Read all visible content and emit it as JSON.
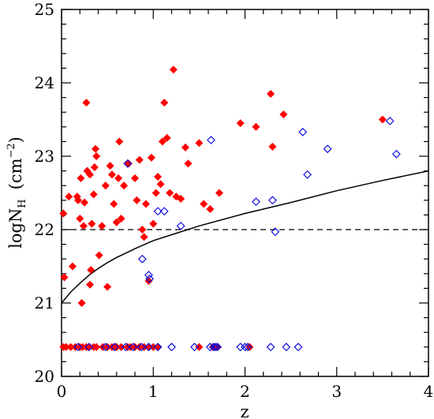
{
  "chart_data": {
    "type": "scatter",
    "title": "",
    "xlabel": "z",
    "ylabel": {
      "prefix": "logN",
      "subscript": "H",
      "unit_open": "(cm",
      "unit_exponent": "−2",
      "unit_close": ")"
    },
    "xlim": [
      0,
      4
    ],
    "ylim": [
      20,
      25
    ],
    "x_ticks": [
      "0",
      "1",
      "2",
      "3",
      "4"
    ],
    "y_ticks": [
      "20",
      "21",
      "22",
      "23",
      "24",
      "25"
    ],
    "grid": false,
    "legend": "none",
    "series": [
      {
        "marker": "filled-diamond",
        "color": "#ff0000",
        "points": [
          [
            0.02,
            22.22
          ],
          [
            0.03,
            21.35
          ],
          [
            0.08,
            22.45
          ],
          [
            0.12,
            21.5
          ],
          [
            0.17,
            22.45
          ],
          [
            0.18,
            22.4
          ],
          [
            0.2,
            22.15
          ],
          [
            0.21,
            22.7
          ],
          [
            0.22,
            21.0
          ],
          [
            0.24,
            22.05
          ],
          [
            0.25,
            22.37
          ],
          [
            0.27,
            23.73
          ],
          [
            0.28,
            22.8
          ],
          [
            0.31,
            21.25
          ],
          [
            0.31,
            22.75
          ],
          [
            0.32,
            21.45
          ],
          [
            0.33,
            22.08
          ],
          [
            0.35,
            22.48
          ],
          [
            0.36,
            22.85
          ],
          [
            0.37,
            23.1
          ],
          [
            0.38,
            23.0
          ],
          [
            0.41,
            21.65
          ],
          [
            0.44,
            22.05
          ],
          [
            0.48,
            22.6
          ],
          [
            0.5,
            21.22
          ],
          [
            0.53,
            22.87
          ],
          [
            0.55,
            22.75
          ],
          [
            0.57,
            22.35
          ],
          [
            0.6,
            22.1
          ],
          [
            0.62,
            22.7
          ],
          [
            0.63,
            23.2
          ],
          [
            0.65,
            22.15
          ],
          [
            0.68,
            22.6
          ],
          [
            0.73,
            22.9
          ],
          [
            0.8,
            22.7
          ],
          [
            0.82,
            22.4
          ],
          [
            0.85,
            22.95
          ],
          [
            0.88,
            22.0
          ],
          [
            0.9,
            21.9
          ],
          [
            0.92,
            22.35
          ],
          [
            0.95,
            21.3
          ],
          [
            0.98,
            22.98
          ],
          [
            1.0,
            22.08
          ],
          [
            1.03,
            22.5
          ],
          [
            1.05,
            22.72
          ],
          [
            1.08,
            22.62
          ],
          [
            1.1,
            23.2
          ],
          [
            1.12,
            23.73
          ],
          [
            1.15,
            23.25
          ],
          [
            1.18,
            22.5
          ],
          [
            1.22,
            24.18
          ],
          [
            1.25,
            22.45
          ],
          [
            1.3,
            22.42
          ],
          [
            1.35,
            23.12
          ],
          [
            1.38,
            22.9
          ],
          [
            1.5,
            23.18
          ],
          [
            1.55,
            22.35
          ],
          [
            1.62,
            22.28
          ],
          [
            1.72,
            22.5
          ],
          [
            1.95,
            23.45
          ],
          [
            2.12,
            23.4
          ],
          [
            2.28,
            23.85
          ],
          [
            2.3,
            23.13
          ],
          [
            2.42,
            23.57
          ],
          [
            3.5,
            23.5
          ],
          [
            0.02,
            20.4
          ],
          [
            0.05,
            20.4
          ],
          [
            0.1,
            20.4
          ],
          [
            0.15,
            20.4
          ],
          [
            0.2,
            20.4
          ],
          [
            0.23,
            20.4
          ],
          [
            0.27,
            20.4
          ],
          [
            0.3,
            20.4
          ],
          [
            0.35,
            20.4
          ],
          [
            0.38,
            20.4
          ],
          [
            0.45,
            20.4
          ],
          [
            0.5,
            20.4
          ],
          [
            0.55,
            20.4
          ],
          [
            0.58,
            20.4
          ],
          [
            0.6,
            20.4
          ],
          [
            0.65,
            20.4
          ],
          [
            0.72,
            20.4
          ],
          [
            0.75,
            20.4
          ],
          [
            0.8,
            20.4
          ],
          [
            0.85,
            20.4
          ],
          [
            0.9,
            20.4
          ],
          [
            0.95,
            20.4
          ],
          [
            1.0,
            20.4
          ],
          [
            1.05,
            20.4
          ],
          [
            1.5,
            20.4
          ],
          [
            1.65,
            20.4
          ],
          [
            1.7,
            20.4
          ],
          [
            2.05,
            20.4
          ]
        ]
      },
      {
        "marker": "open-diamond",
        "color": "#0000dd",
        "points": [
          [
            0.72,
            22.9
          ],
          [
            0.88,
            21.6
          ],
          [
            0.95,
            21.38
          ],
          [
            0.96,
            21.33
          ],
          [
            1.05,
            22.25
          ],
          [
            1.12,
            22.25
          ],
          [
            1.3,
            22.05
          ],
          [
            1.63,
            23.22
          ],
          [
            2.12,
            22.38
          ],
          [
            2.3,
            22.4
          ],
          [
            2.33,
            21.97
          ],
          [
            2.63,
            23.33
          ],
          [
            2.68,
            22.75
          ],
          [
            2.9,
            23.1
          ],
          [
            3.58,
            23.48
          ],
          [
            3.65,
            23.03
          ],
          [
            0.18,
            20.4
          ],
          [
            0.3,
            20.4
          ],
          [
            0.48,
            20.4
          ],
          [
            0.58,
            20.4
          ],
          [
            0.7,
            20.4
          ],
          [
            0.78,
            20.4
          ],
          [
            0.87,
            20.4
          ],
          [
            0.95,
            20.4
          ],
          [
            1.05,
            20.4
          ],
          [
            1.2,
            20.4
          ],
          [
            1.45,
            20.4
          ],
          [
            1.62,
            20.4
          ],
          [
            1.66,
            20.4
          ],
          [
            1.68,
            20.4
          ],
          [
            1.7,
            20.4
          ],
          [
            1.95,
            20.4
          ],
          [
            2.0,
            20.4
          ],
          [
            2.03,
            20.4
          ],
          [
            2.28,
            20.4
          ],
          [
            2.45,
            20.4
          ],
          [
            2.58,
            20.4
          ]
        ]
      }
    ],
    "curve": {
      "style": "solid",
      "color": "#000000",
      "points": [
        [
          0.0,
          21.0
        ],
        [
          0.1,
          21.15
        ],
        [
          0.2,
          21.27
        ],
        [
          0.3,
          21.38
        ],
        [
          0.4,
          21.47
        ],
        [
          0.5,
          21.55
        ],
        [
          0.6,
          21.62
        ],
        [
          0.7,
          21.68
        ],
        [
          0.8,
          21.74
        ],
        [
          1.0,
          21.85
        ],
        [
          1.2,
          21.93
        ],
        [
          1.5,
          22.05
        ],
        [
          2.0,
          22.22
        ],
        [
          2.5,
          22.37
        ],
        [
          3.0,
          22.53
        ],
        [
          3.5,
          22.67
        ],
        [
          4.0,
          22.8
        ]
      ]
    },
    "reference_line": {
      "style": "dashed",
      "color": "#000000",
      "y": 22.0
    }
  }
}
